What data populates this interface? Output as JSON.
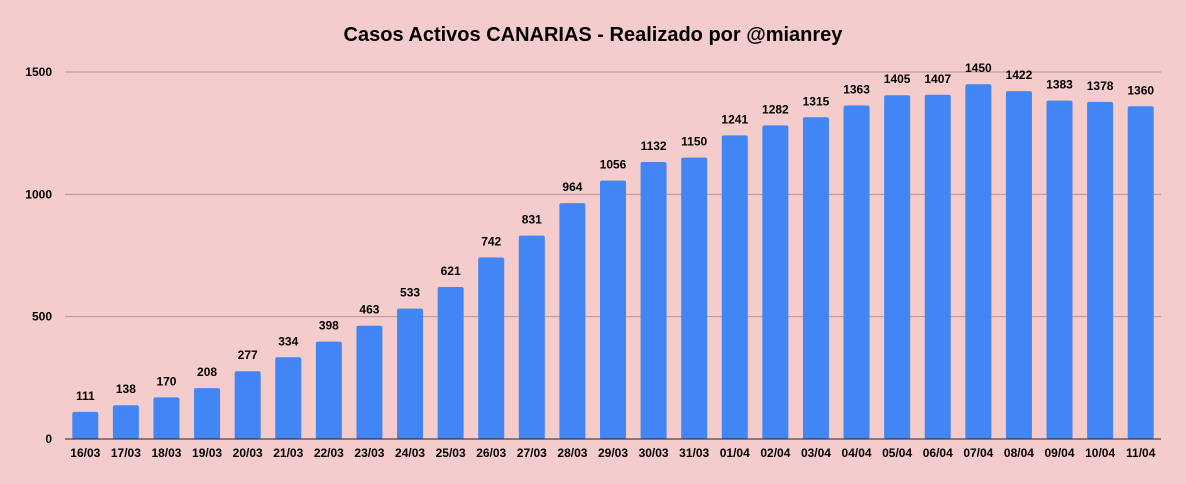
{
  "chart_data": {
    "type": "bar",
    "title": "Casos Activos CANARIAS - Realizado por @mianrey",
    "xlabel": "",
    "ylabel": "",
    "ylim": [
      0,
      1500
    ],
    "yticks": [
      0,
      500,
      1000,
      1500
    ],
    "grid": true,
    "legend": "none",
    "bar_color": "#4285f4",
    "background_color": "#f4cccc",
    "categories": [
      "16/03",
      "17/03",
      "18/03",
      "19/03",
      "20/03",
      "21/03",
      "22/03",
      "23/03",
      "24/03",
      "25/03",
      "26/03",
      "27/03",
      "28/03",
      "29/03",
      "30/03",
      "31/03",
      "01/04",
      "02/04",
      "03/04",
      "04/04",
      "05/04",
      "06/04",
      "07/04",
      "08/04",
      "09/04",
      "10/04",
      "11/04"
    ],
    "values": [
      111,
      138,
      170,
      208,
      277,
      334,
      398,
      463,
      533,
      621,
      742,
      831,
      964,
      1056,
      1132,
      1150,
      1241,
      1282,
      1315,
      1363,
      1405,
      1407,
      1450,
      1422,
      1383,
      1378,
      1360
    ]
  }
}
